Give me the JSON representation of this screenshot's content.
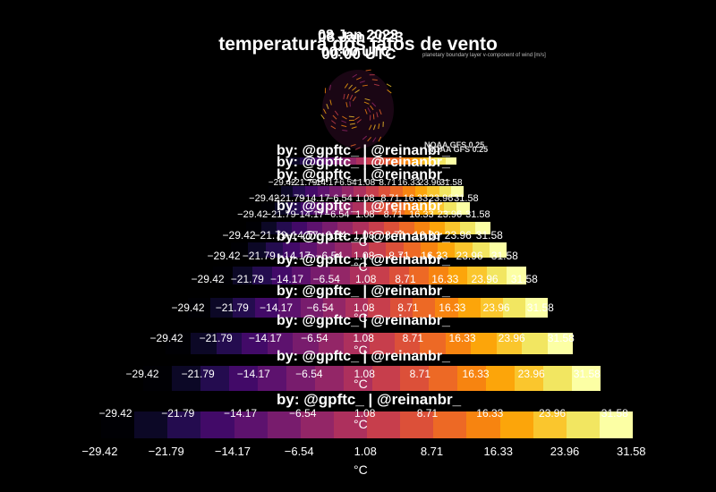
{
  "header": {
    "date": "08 Jan 2023",
    "time": "00:00 UTC",
    "title": "temperatura dos jatos de vento",
    "variable_note": "planetary boundary layer v-component of wind [m/s]",
    "model": "NOAA GFS 0.25"
  },
  "credit": "by: @gpftc_ | @reinanbr_",
  "colorbar": {
    "unit": "°C",
    "ticks": [
      "−29.42",
      "−21.79",
      "−14.17",
      "−6.54",
      "1.08",
      "8.71",
      "16.33",
      "23.96",
      "31.58"
    ],
    "colormap": "inferno",
    "colors": [
      "#000004",
      "#0c0826",
      "#240c4f",
      "#420a68",
      "#5d126e",
      "#781c6d",
      "#932667",
      "#ad305d",
      "#c73e4c",
      "#dc5039",
      "#ed6925",
      "#f78410",
      "#fca50a",
      "#fac62d",
      "#f2e661",
      "#fcffa4"
    ]
  }
}
